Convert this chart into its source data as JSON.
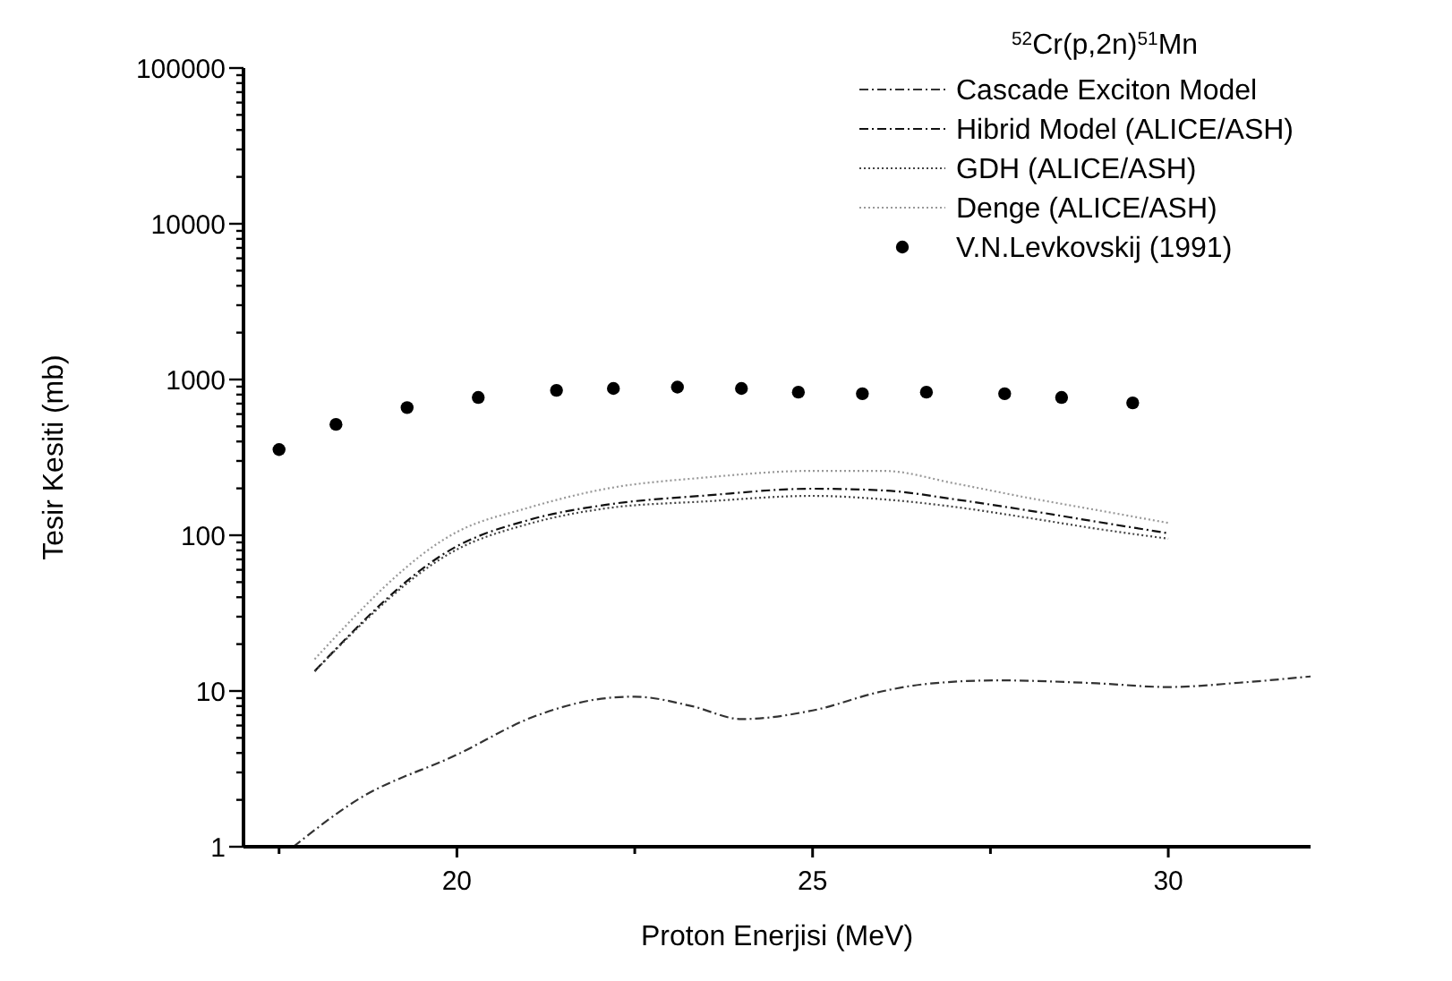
{
  "chart_data": {
    "type": "line",
    "xlabel": "Proton Enerjisi (MeV)",
    "ylabel": "Tesir Kesiti (mb)",
    "legend_title": "$^{52}$Cr(p,2n)$^{51}$Mn",
    "legend": "top right",
    "log": "y",
    "grid": false,
    "xlim": [
      17,
      32
    ],
    "xticks": [
      {
        "value": 17.5,
        "label": null
      },
      20,
      {
        "value": 22.5,
        "label": null
      },
      25,
      {
        "value": 27.5,
        "label": null
      },
      30
    ],
    "ylim": [
      1,
      100000
    ],
    "yticks": [
      1,
      {
        "value": 2,
        "label": null
      },
      {
        "value": 3,
        "label": null
      },
      {
        "value": 4,
        "label": null
      },
      {
        "value": 5,
        "label": null
      },
      {
        "value": 6,
        "label": null
      },
      {
        "value": 7,
        "label": null
      },
      {
        "value": 8,
        "label": null
      },
      {
        "value": 9,
        "label": null
      },
      10,
      {
        "value": 20,
        "label": null
      },
      {
        "value": 30,
        "label": null
      },
      {
        "value": 40,
        "label": null
      },
      {
        "value": 50,
        "label": null
      },
      {
        "value": 60,
        "label": null
      },
      {
        "value": 70,
        "label": null
      },
      {
        "value": 80,
        "label": null
      },
      {
        "value": 90,
        "label": null
      },
      100,
      {
        "value": 200,
        "label": null
      },
      {
        "value": 300,
        "label": null
      },
      {
        "value": 400,
        "label": null
      },
      {
        "value": 500,
        "label": null
      },
      {
        "value": 600,
        "label": null
      },
      {
        "value": 700,
        "label": null
      },
      {
        "value": 800,
        "label": null
      },
      {
        "value": 900,
        "label": null
      },
      1000,
      {
        "value": 2000,
        "label": null
      },
      {
        "value": 3000,
        "label": null
      },
      {
        "value": 4000,
        "label": null
      },
      {
        "value": 5000,
        "label": null
      },
      {
        "value": 6000,
        "label": null
      },
      {
        "value": 7000,
        "label": null
      },
      {
        "value": 8000,
        "label": null
      },
      {
        "value": 9000,
        "label": null
      },
      10000,
      {
        "value": 20000,
        "label": null
      },
      {
        "value": 30000,
        "label": null
      },
      {
        "value": 40000,
        "label": null
      },
      {
        "value": 50000,
        "label": null
      },
      {
        "value": 60000,
        "label": null
      },
      {
        "value": 70000,
        "label": null
      },
      {
        "value": 80000,
        "label": null
      },
      {
        "value": 90000,
        "label": null
      },
      100000
    ],
    "series": [
      {
        "name": "Cascade Exciton Model",
        "color": "#333333",
        "line_style": "dashed",
        "x": [
          17.7,
          18.6,
          20,
          21.1,
          22.1,
          22.5,
          23.3,
          24,
          25,
          26,
          26.6,
          27.6,
          29,
          30,
          31,
          32
        ],
        "values": [
          1.0,
          2.0,
          3.9,
          6.9,
          9.0,
          9.2,
          8.0,
          6.6,
          7.5,
          10,
          11.1,
          11.7,
          11.2,
          10.6,
          11.3,
          12.4
        ]
      },
      {
        "name": "Hibrid Model (ALICE/ASH)",
        "color": "#111111",
        "line_style": "dashed",
        "x": [
          18,
          20,
          21,
          22.1,
          23.5,
          25,
          26,
          27,
          28,
          29,
          30
        ],
        "values": [
          13.4,
          85,
          125,
          157,
          180,
          199,
          194,
          170,
          145,
          122,
          103
        ]
      },
      {
        "name": "GDH (ALICE/ASH)",
        "color": "#444444",
        "line_style": "dotted",
        "x": [
          18,
          20,
          21,
          22.1,
          23.5,
          25,
          26,
          27,
          28,
          29,
          30
        ],
        "values": [
          13.4,
          81,
          118,
          149,
          165,
          179,
          170,
          152,
          130,
          110,
          95
        ]
      },
      {
        "name": "Denge (ALICE/ASH)",
        "color": "#999999",
        "line_style": "dotted",
        "x": [
          18,
          20,
          21,
          22.1,
          23.5,
          25,
          26,
          27,
          28,
          29,
          30
        ],
        "values": [
          16,
          105,
          150,
          199,
          235,
          259,
          259,
          215,
          175,
          145,
          120
        ]
      },
      {
        "name": "V.N.Levkovskij (1991)",
        "type": "scatter",
        "color": "#000000",
        "marker": "circle",
        "x": [
          17.5,
          18.3,
          19.3,
          20.3,
          21.4,
          22.2,
          23.1,
          24.0,
          24.8,
          25.7,
          26.6,
          27.7,
          28.5,
          29.5
        ],
        "values": [
          355,
          515,
          660,
          767,
          852,
          876,
          894,
          876,
          829,
          811,
          829,
          811,
          767,
          708
        ]
      }
    ]
  }
}
